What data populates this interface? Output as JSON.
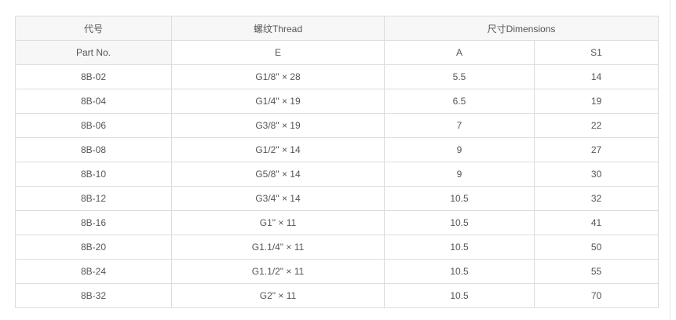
{
  "header": {
    "part_cn": "代号",
    "part_en": "Part No.",
    "thread": "螺纹Thread",
    "dimensions": "尺寸Dimensions",
    "e": "E",
    "a": "A",
    "s1": "S1"
  },
  "rows": [
    [
      "8B-02",
      "G1/8\" × 28",
      "5.5",
      "14"
    ],
    [
      "8B-04",
      "G1/4\" × 19",
      "6.5",
      "19"
    ],
    [
      "8B-06",
      "G3/8\" × 19",
      "7",
      "22"
    ],
    [
      "8B-08",
      "G1/2\" × 14",
      "9",
      "27"
    ],
    [
      "8B-10",
      "G5/8\" × 14",
      "9",
      "30"
    ],
    [
      "8B-12",
      "G3/4\" × 14",
      "10.5",
      "32"
    ],
    [
      "8B-16",
      "G1\" × 11",
      "10.5",
      "41"
    ],
    [
      "8B-20",
      "G1.1/4\" × 11",
      "10.5",
      "50"
    ],
    [
      "8B-24",
      "G1.1/2\" × 11",
      "10.5",
      "55"
    ],
    [
      "8B-32",
      "G2\" × 11",
      "10.5",
      "70"
    ]
  ]
}
